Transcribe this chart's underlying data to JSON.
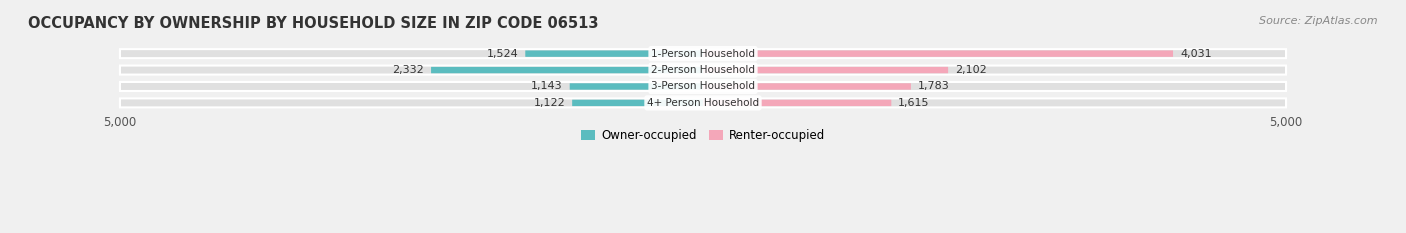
{
  "title": "OCCUPANCY BY OWNERSHIP BY HOUSEHOLD SIZE IN ZIP CODE 06513",
  "source": "Source: ZipAtlas.com",
  "categories": [
    "1-Person Household",
    "2-Person Household",
    "3-Person Household",
    "4+ Person Household"
  ],
  "owner_values": [
    1524,
    2332,
    1143,
    1122
  ],
  "renter_values": [
    4031,
    2102,
    1783,
    1615
  ],
  "owner_color": "#5bbcbf",
  "renter_color": "#f4a7b9",
  "axis_limit": 5000,
  "background_color": "#f0f0f0",
  "bar_bg_color": "#e0e0e0",
  "title_fontsize": 10.5,
  "source_fontsize": 8,
  "label_fontsize": 8,
  "tick_fontsize": 8.5,
  "legend_fontsize": 8.5
}
